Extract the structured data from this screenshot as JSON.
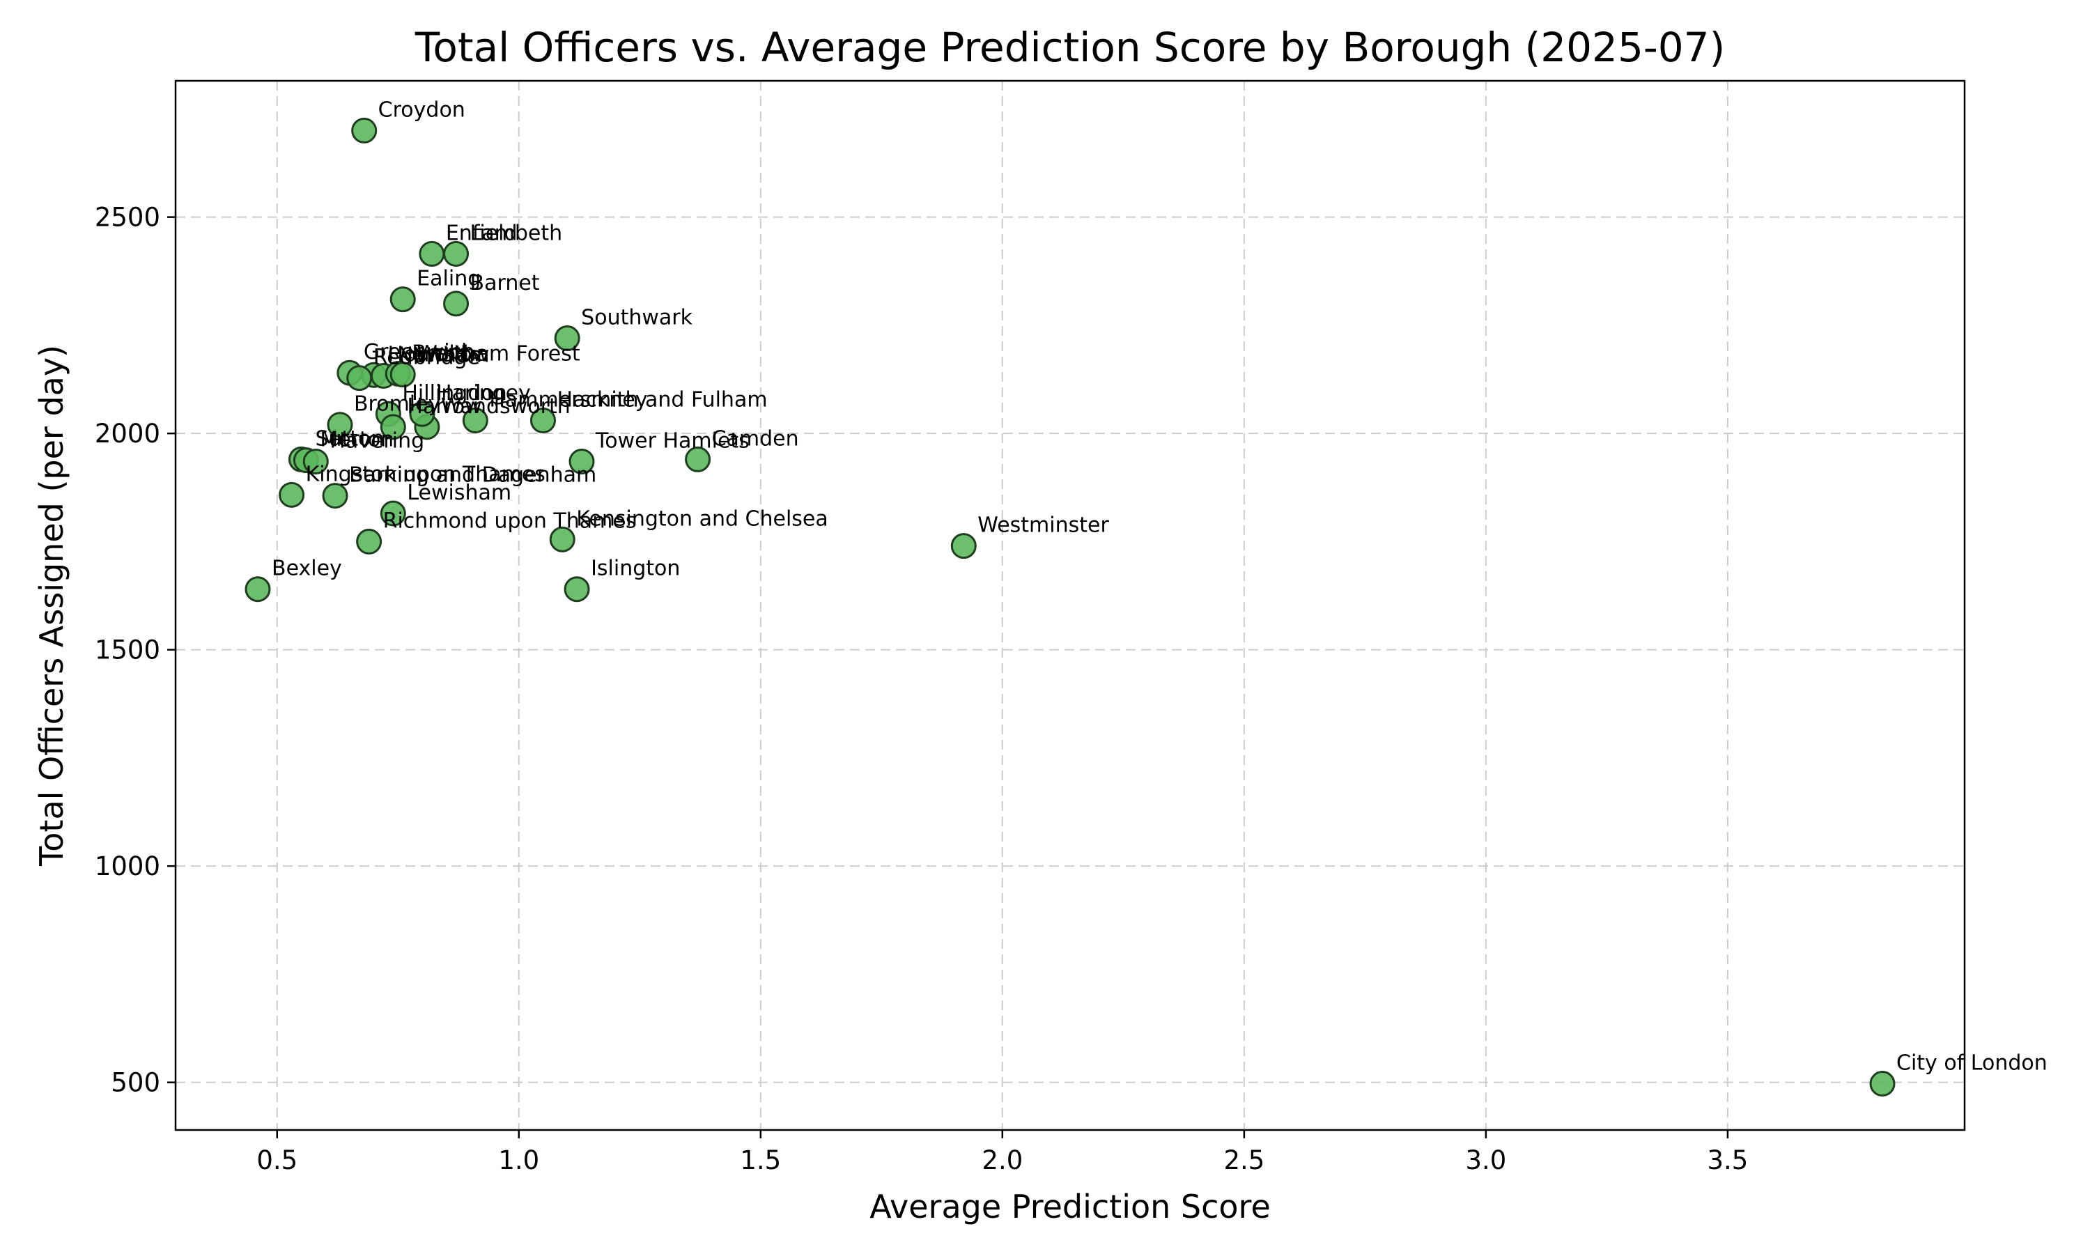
{
  "colors": {
    "point_fill": "#5cb85c",
    "point_edge": "#1f3d1f",
    "grid": "#cccccc"
  },
  "chart_data": {
    "type": "scatter",
    "title": "Total Officers vs. Average Prediction Score by Borough (2025-07)",
    "xlabel": "Average Prediction Score",
    "ylabel": "Total Officers Assigned (per day)",
    "xlim": [
      0.29,
      3.99
    ],
    "ylim": [
      390,
      2815
    ],
    "xticks": [
      0.5,
      1.0,
      1.5,
      2.0,
      2.5,
      3.0,
      3.5
    ],
    "xtick_labels": [
      "0.5",
      "1.0",
      "1.5",
      "2.0",
      "2.5",
      "3.0",
      "3.5"
    ],
    "yticks": [
      500,
      1000,
      1500,
      2000,
      2500
    ],
    "ytick_labels": [
      "500",
      "1000",
      "1500",
      "2000",
      "2500"
    ],
    "grid": true,
    "points": [
      {
        "label": "Croydon",
        "x": 0.68,
        "y": 2700
      },
      {
        "label": "Enfield",
        "x": 0.82,
        "y": 2415
      },
      {
        "label": "Lambeth",
        "x": 0.87,
        "y": 2415
      },
      {
        "label": "Ealing",
        "x": 0.76,
        "y": 2310
      },
      {
        "label": "Barnet",
        "x": 0.87,
        "y": 2300
      },
      {
        "label": "Southwark",
        "x": 1.1,
        "y": 2220
      },
      {
        "label": "Greenwich",
        "x": 0.65,
        "y": 2140
      },
      {
        "label": "Hounslow",
        "x": 0.7,
        "y": 2135
      },
      {
        "label": "Newham",
        "x": 0.72,
        "y": 2133
      },
      {
        "label": "Redbridge",
        "x": 0.67,
        "y": 2128
      },
      {
        "label": "Brent",
        "x": 0.75,
        "y": 2138
      },
      {
        "label": "Waltham Forest",
        "x": 0.76,
        "y": 2136
      },
      {
        "label": "Bromley",
        "x": 0.63,
        "y": 2020
      },
      {
        "label": "Hillingdon",
        "x": 0.73,
        "y": 2045
      },
      {
        "label": "Harrow",
        "x": 0.74,
        "y": 2015
      },
      {
        "label": "Wandsworth",
        "x": 0.81,
        "y": 2015
      },
      {
        "label": "Haringey",
        "x": 0.8,
        "y": 2045
      },
      {
        "label": "Hammersmith and Fulham",
        "x": 0.91,
        "y": 2030
      },
      {
        "label": "Hackney",
        "x": 1.05,
        "y": 2030
      },
      {
        "label": "Tower Hamlets",
        "x": 1.13,
        "y": 1935
      },
      {
        "label": "Camden",
        "x": 1.37,
        "y": 1940
      },
      {
        "label": "Sutton",
        "x": 0.55,
        "y": 1940
      },
      {
        "label": "Merton",
        "x": 0.56,
        "y": 1938
      },
      {
        "label": "Havering",
        "x": 0.58,
        "y": 1935
      },
      {
        "label": "Kingston upon Thames",
        "x": 0.53,
        "y": 1858
      },
      {
        "label": "Barking and Dagenham",
        "x": 0.62,
        "y": 1856
      },
      {
        "label": "Lewisham",
        "x": 0.74,
        "y": 1815
      },
      {
        "label": "Richmond upon Thames",
        "x": 0.69,
        "y": 1750
      },
      {
        "label": "Kensington and Chelsea",
        "x": 1.09,
        "y": 1755
      },
      {
        "label": "Westminster",
        "x": 1.92,
        "y": 1740
      },
      {
        "label": "Bexley",
        "x": 0.46,
        "y": 1640
      },
      {
        "label": "Islington",
        "x": 1.12,
        "y": 1640
      },
      {
        "label": "City of London",
        "x": 3.82,
        "y": 497
      }
    ]
  }
}
